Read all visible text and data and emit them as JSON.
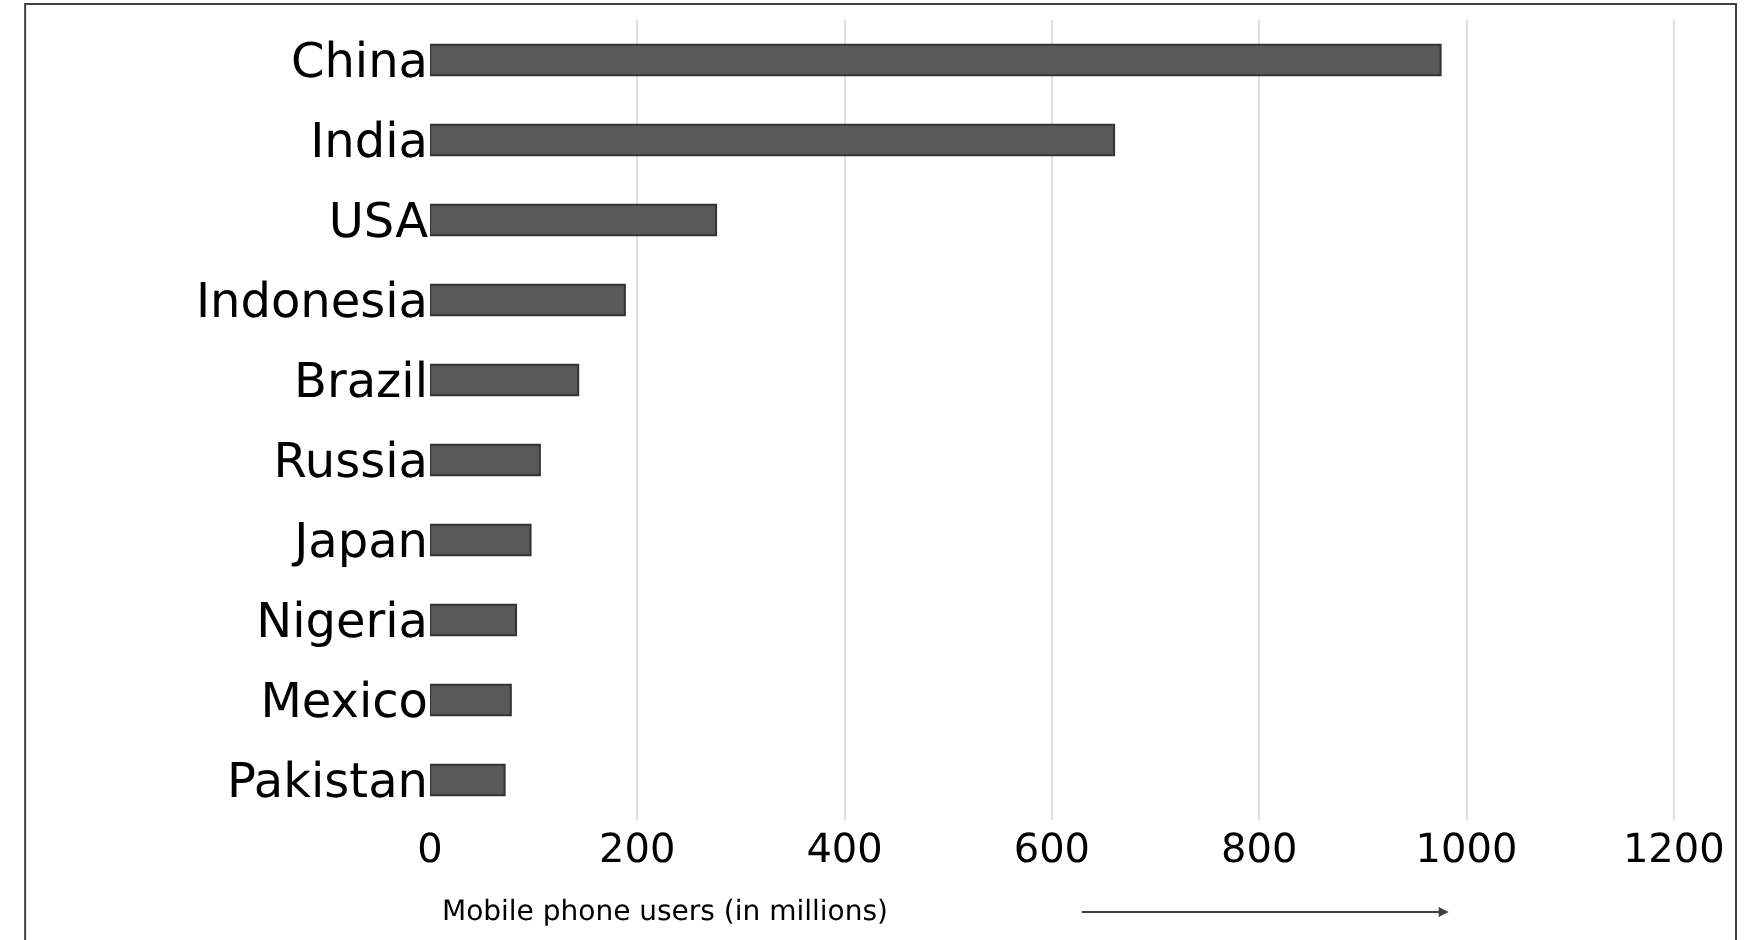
{
  "chart_data": {
    "type": "bar",
    "orientation": "horizontal",
    "categories": [
      "China",
      "India",
      "USA",
      "Indonesia",
      "Brazil",
      "Russia",
      "Japan",
      "Nigeria",
      "Mexico",
      "Pakistan"
    ],
    "values": [
      975,
      660,
      276,
      188,
      143,
      106,
      97,
      83,
      78,
      72
    ],
    "color": "#595959",
    "xlabel": "Mobile phone users (in millions)",
    "xlim": [
      0,
      1260
    ],
    "xticks": [
      0,
      200,
      400,
      600,
      800,
      1000,
      1200
    ],
    "grid": "x",
    "legend": false
  }
}
